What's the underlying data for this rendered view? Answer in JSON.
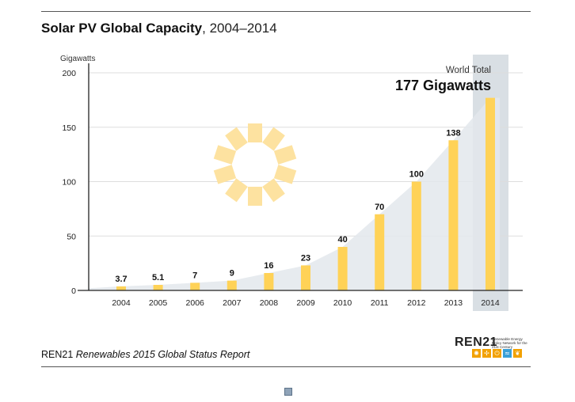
{
  "title": {
    "bold": "Solar PV Global Capacity",
    "rest": ", 2004–2014"
  },
  "callout": {
    "line1": "World Total",
    "line2": "177 Gigawatts"
  },
  "footer": {
    "org": "REN21",
    "report": "Renewables 2015 Global Status Report"
  },
  "logo": {
    "word": "REN21",
    "tagline": "Renewable Energy Policy Network for the 21st Century",
    "icons": [
      "sun-icon",
      "wind-icon",
      "power-icon",
      "water-icon",
      "leaf-icon"
    ],
    "icon_colors": [
      "#f2a100",
      "#f2a100",
      "#f2a100",
      "#3aa0d8",
      "#f2a100"
    ]
  },
  "colors": {
    "bar": "#ffd257",
    "area": "#e3e8ec",
    "highlight": "#d9dfe4",
    "sun": "#fde2a0",
    "grid": "#dddddd"
  },
  "chart_data": {
    "type": "bar",
    "title": "Solar PV Global Capacity, 2004–2014",
    "ylabel": "Gigawatts",
    "xlabel": "",
    "categories": [
      "2004",
      "2005",
      "2006",
      "2007",
      "2008",
      "2009",
      "2010",
      "2011",
      "2012",
      "2013",
      "2014"
    ],
    "values": [
      3.7,
      5.1,
      7,
      9,
      16,
      23,
      40,
      70,
      100,
      138,
      177
    ],
    "labels": [
      "3.7",
      "5.1",
      "7",
      "9",
      "16",
      "23",
      "40",
      "70",
      "100",
      "138",
      ""
    ],
    "yticks": [
      0,
      50,
      100,
      150,
      200
    ],
    "ylim": [
      0,
      200
    ],
    "grid": true,
    "background_area": true,
    "highlight_category": "2014"
  }
}
